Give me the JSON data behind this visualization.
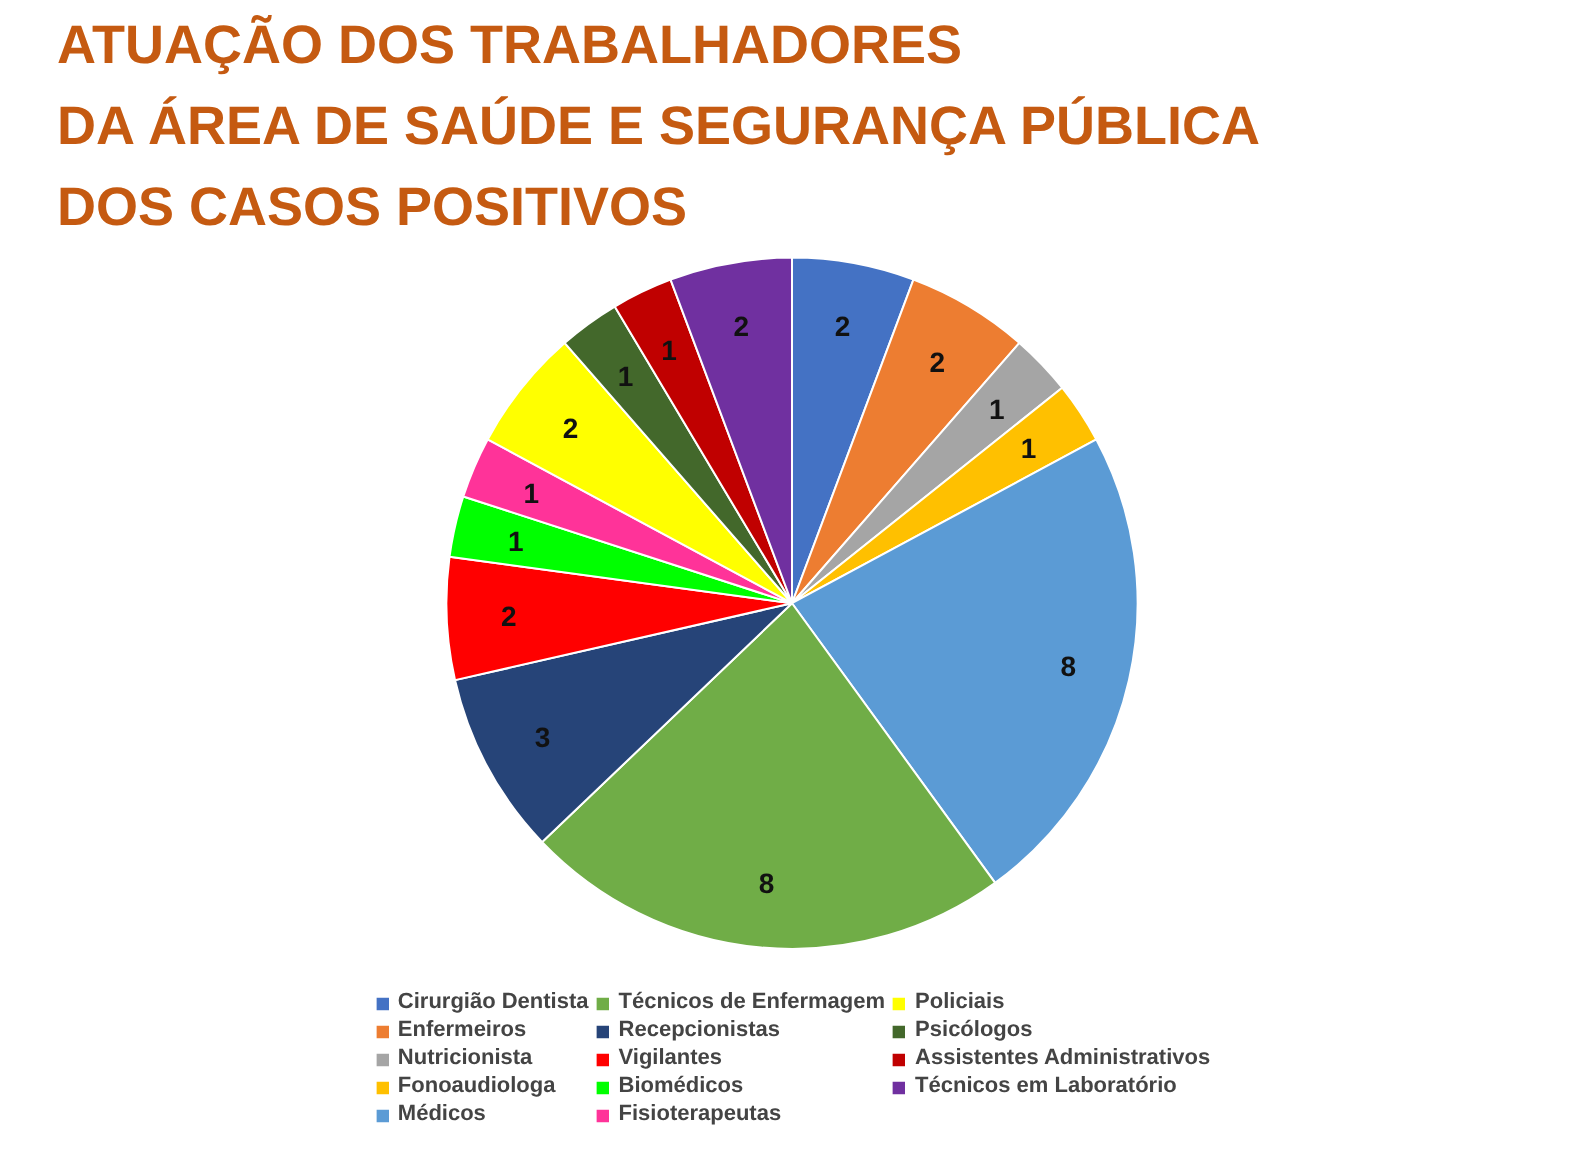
{
  "chart_data": {
    "type": "pie",
    "title": "ATUAÇÃO DOS TRABALHADORES\nDA ÁREA DE SAÚDE E SEGURANÇA PÚBLICA\nDOS CASOS POSITIVOS",
    "categories": [
      "Cirurgião Dentista",
      "Enfermeiros",
      "Nutricionista",
      "Fonoaudiologa",
      "Médicos",
      "Técnicos de Enfermagem",
      "Recepcionistas",
      "Vigilantes",
      "Biomédicos",
      "Fisioterapeutas",
      "Policiais",
      "Psicólogos",
      "Assistentes Administrativos",
      "Técnicos em Laboratório"
    ],
    "values": [
      2,
      2,
      1,
      1,
      8,
      8,
      3,
      2,
      1,
      1,
      2,
      1,
      1,
      2
    ],
    "colors": [
      "#4472c4",
      "#ed7d31",
      "#a5a5a5",
      "#ffc000",
      "#5b9bd5",
      "#70ad47",
      "#264478",
      "#ff0000",
      "#00ff00",
      "#ff3399",
      "#ffff00",
      "#43682b",
      "#c00000",
      "#7030a0"
    ],
    "data_labels": true,
    "legend": "bottom"
  }
}
